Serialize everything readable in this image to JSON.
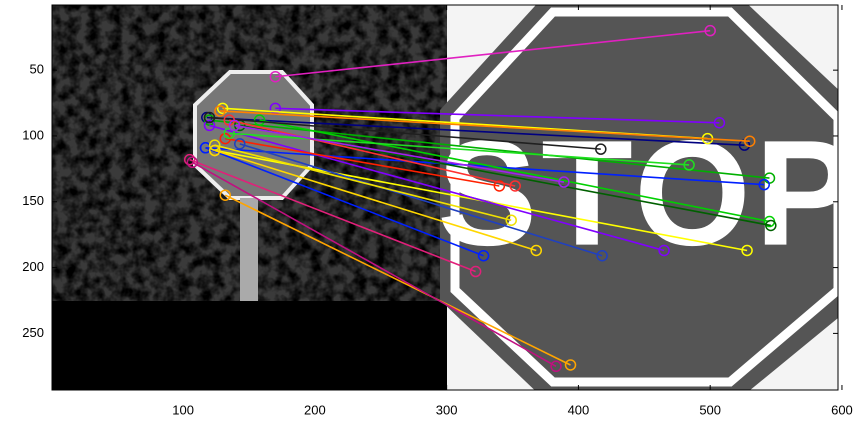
{
  "chart_data": {
    "type": "matches",
    "xlim": [
      0.5,
      597
    ],
    "ylim": [
      293,
      0.5
    ],
    "xticks": [
      100,
      200,
      300,
      400,
      500,
      600
    ],
    "yticks": [
      50,
      100,
      150,
      200,
      250
    ],
    "matches": [
      {
        "color": "#e020c0",
        "x1": 170,
        "y1": 55,
        "x2": 500,
        "y2": 20
      },
      {
        "color": "#8000ff",
        "x1": 170,
        "y1": 79,
        "x2": 507,
        "y2": 90
      },
      {
        "color": "#000080",
        "x1": 118,
        "y1": 86,
        "x2": 526,
        "y2": 107
      },
      {
        "color": "#ffff00",
        "x1": 130,
        "y1": 79,
        "x2": 498,
        "y2": 102
      },
      {
        "color": "#e0207a",
        "x1": 105,
        "y1": 118,
        "x2": 322,
        "y2": 203
      },
      {
        "color": "#ffa500",
        "x1": 132,
        "y1": 145,
        "x2": 394,
        "y2": 274
      },
      {
        "color": "#c01080",
        "x1": 107,
        "y1": 120,
        "x2": 383,
        "y2": 275
      },
      {
        "color": "#00b000",
        "x1": 120,
        "y1": 88,
        "x2": 545,
        "y2": 132
      },
      {
        "color": "#0020ff",
        "x1": 117,
        "y1": 109,
        "x2": 541,
        "y2": 137
      },
      {
        "color": "#ffff00",
        "x1": 124,
        "y1": 111,
        "x2": 528,
        "y2": 187
      },
      {
        "color": "#8000ff",
        "x1": 120,
        "y1": 92,
        "x2": 465,
        "y2": 187
      },
      {
        "color": "#0020ff",
        "x1": 117,
        "y1": 109,
        "x2": 328,
        "y2": 191
      },
      {
        "color": "#ffd700",
        "x1": 124,
        "y1": 111,
        "x2": 368,
        "y2": 187
      },
      {
        "color": "#ff2000",
        "x1": 132,
        "y1": 102,
        "x2": 340,
        "y2": 138
      },
      {
        "color": "#00d000",
        "x1": 158,
        "y1": 88,
        "x2": 545,
        "y2": 165
      },
      {
        "color": "#006000",
        "x1": 143,
        "y1": 92,
        "x2": 546,
        "y2": 168
      },
      {
        "color": "#ff8000",
        "x1": 128,
        "y1": 81,
        "x2": 530,
        "y2": 104
      },
      {
        "color": "#2040c0",
        "x1": 143,
        "y1": 106,
        "x2": 418,
        "y2": 191
      },
      {
        "color": "#20e020",
        "x1": 135,
        "y1": 98,
        "x2": 484,
        "y2": 122
      },
      {
        "color": "#202020",
        "x1": 120,
        "y1": 86,
        "x2": 417,
        "y2": 110
      },
      {
        "color": "#ff3030",
        "x1": 135,
        "y1": 88,
        "x2": 352,
        "y2": 138
      },
      {
        "color": "#a020f0",
        "x1": 139,
        "y1": 92,
        "x2": 389,
        "y2": 135
      },
      {
        "color": "#f0e000",
        "x1": 124,
        "y1": 107,
        "x2": 349,
        "y2": 164
      }
    ]
  }
}
